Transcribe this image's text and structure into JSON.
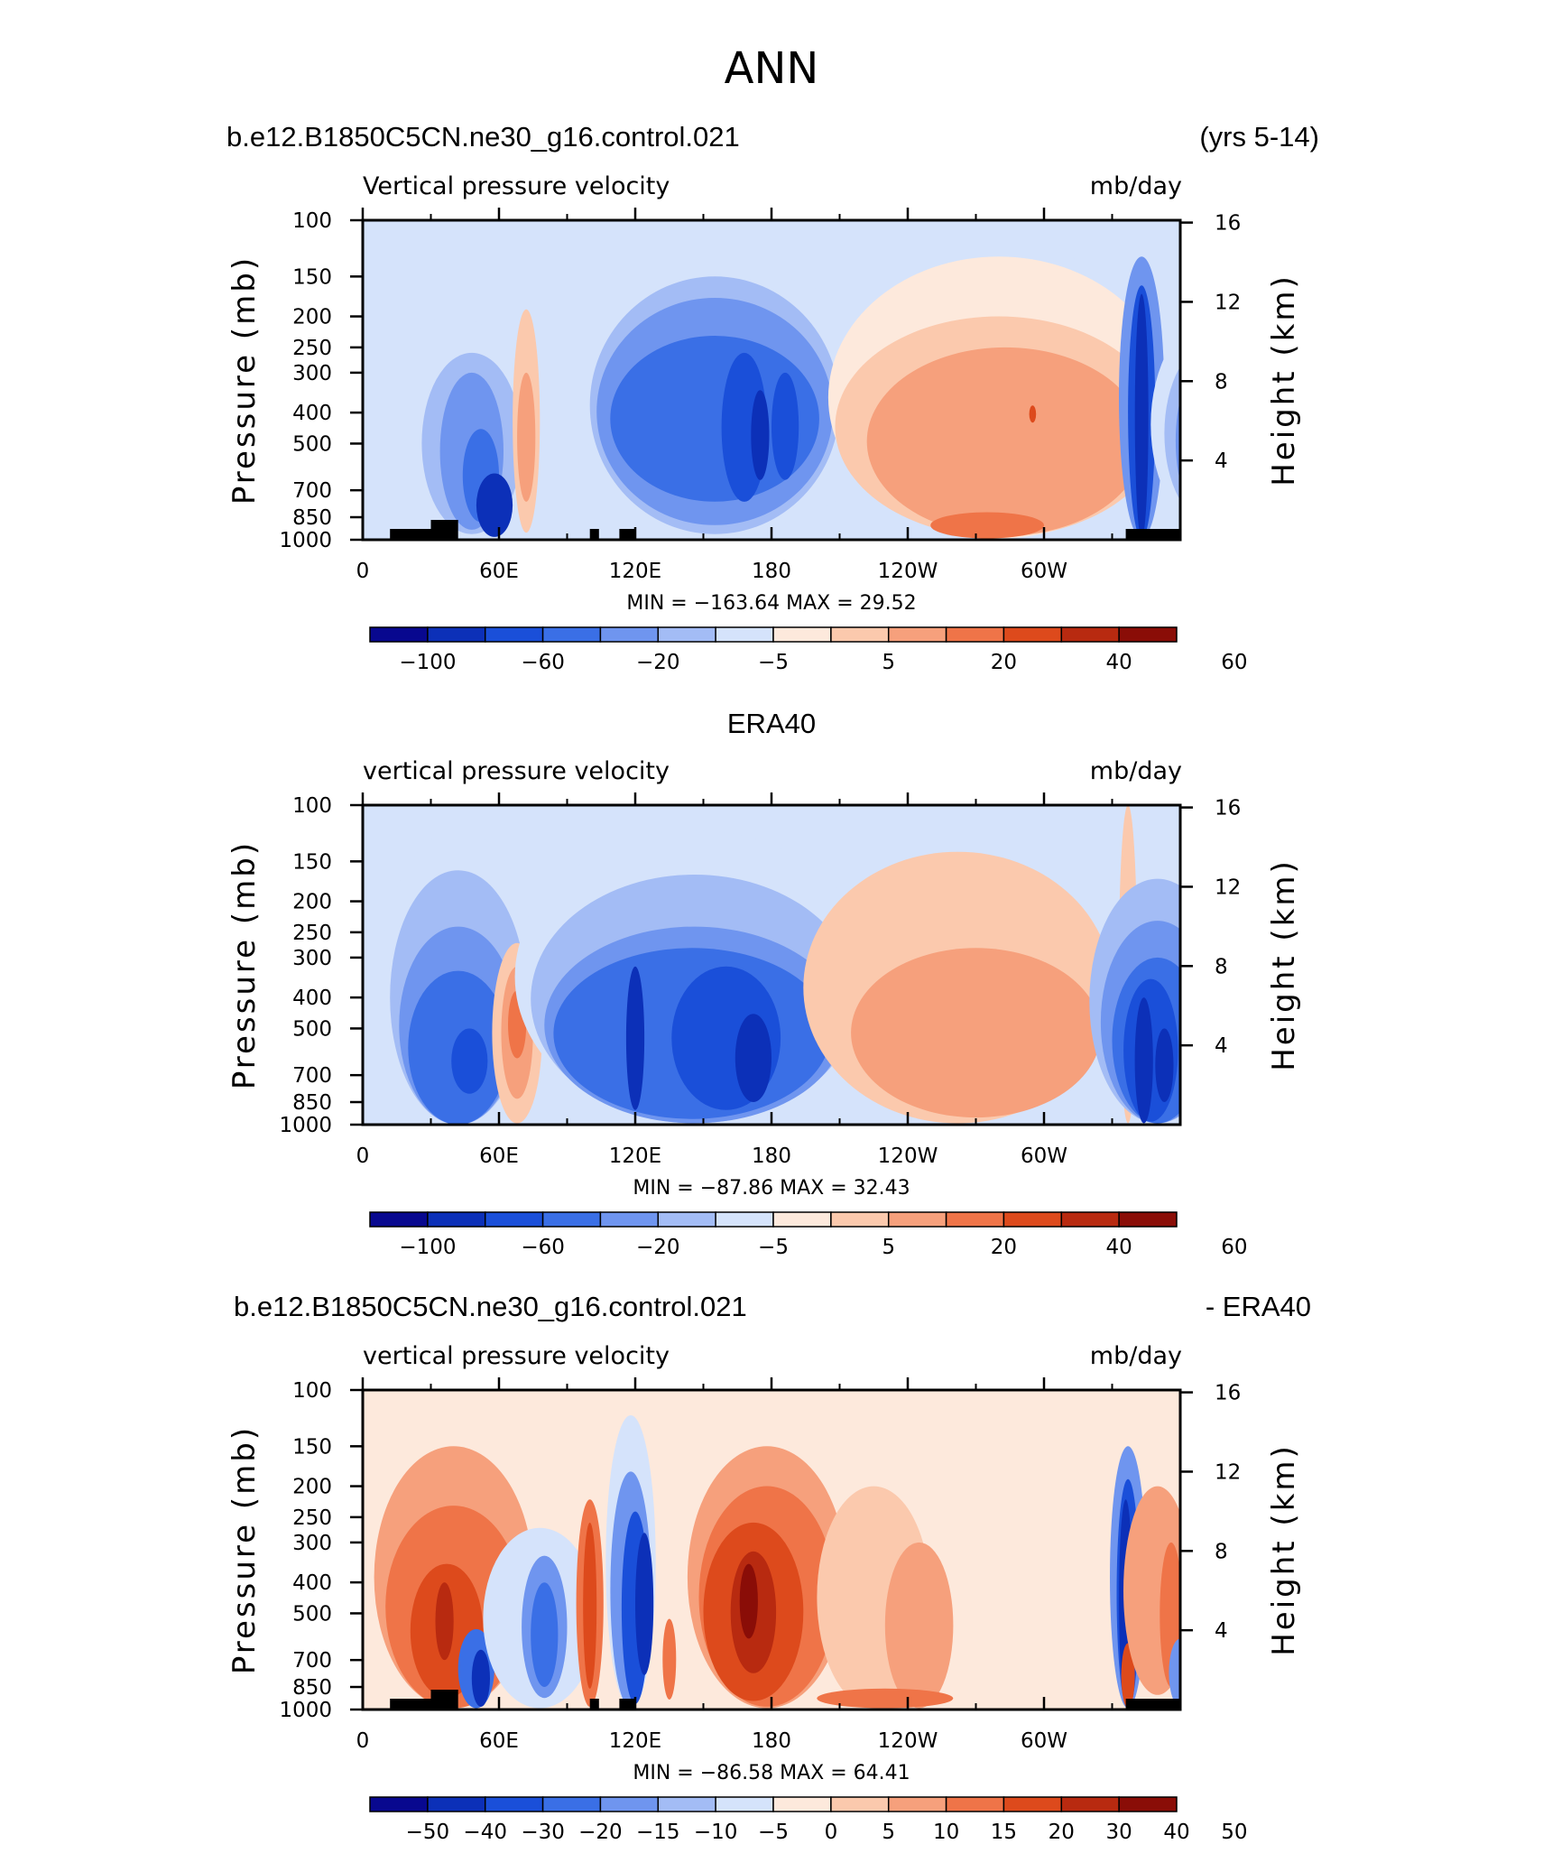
{
  "figure": {
    "title": "ANN"
  },
  "panels": [
    {
      "left_header": "b.e12.B1850C5CN.ne30_g16.control.021",
      "right_header": "(yrs 5-14)",
      "variable": "Vertical pressure velocity",
      "units": "mb/day",
      "min_max_text": "MIN = −163.64   MAX =   29.52"
    },
    {
      "center_header": "ERA40",
      "variable": "vertical pressure velocity",
      "units": "mb/day",
      "min_max_text": "MIN = −87.86   MAX =   32.43"
    },
    {
      "left_header": "b.e12.B1850C5CN.ne30_g16.control.021",
      "right_header": "- ERA40",
      "variable": "vertical pressure velocity",
      "units": "mb/day",
      "min_max_text": "MIN = −86.58   MAX =   64.41"
    }
  ],
  "chart_data": [
    {
      "type": "heatmap",
      "title": "b.e12.B1850C5CN.ne30_g16.control.021 (yrs 5-14)",
      "xlabel": "",
      "ylabel": "Pressure (mb)",
      "y2label": "Height (km)",
      "x_ticks": [
        "0",
        "60E",
        "120E",
        "180",
        "120W",
        "60W"
      ],
      "y_ticks": [
        "100",
        "150",
        "200",
        "250",
        "300",
        "400",
        "500",
        "700",
        "850",
        "1000"
      ],
      "y2_ticks": [
        "16",
        "12",
        "8",
        "4"
      ],
      "colorbar_labels": [
        "−100",
        "−60",
        "−20",
        "−5",
        "5",
        "20",
        "40",
        "60"
      ],
      "min": -163.64,
      "max": 29.52
    },
    {
      "type": "heatmap",
      "title": "ERA40",
      "xlabel": "",
      "ylabel": "Pressure (mb)",
      "y2label": "Height (km)",
      "x_ticks": [
        "0",
        "60E",
        "120E",
        "180",
        "120W",
        "60W"
      ],
      "y_ticks": [
        "100",
        "150",
        "200",
        "250",
        "300",
        "400",
        "500",
        "700",
        "850",
        "1000"
      ],
      "y2_ticks": [
        "16",
        "12",
        "8",
        "4"
      ],
      "colorbar_labels": [
        "−100",
        "−60",
        "−20",
        "−5",
        "5",
        "20",
        "40",
        "60"
      ],
      "min": -87.86,
      "max": 32.43
    },
    {
      "type": "heatmap",
      "title": "b.e12.B1850C5CN.ne30_g16.control.021 - ERA40",
      "xlabel": "",
      "ylabel": "Pressure (mb)",
      "y2label": "Height (km)",
      "x_ticks": [
        "0",
        "60E",
        "120E",
        "180",
        "120W",
        "60W"
      ],
      "y_ticks": [
        "100",
        "150",
        "200",
        "250",
        "300",
        "400",
        "500",
        "700",
        "850",
        "1000"
      ],
      "y2_ticks": [
        "16",
        "12",
        "8",
        "4"
      ],
      "colorbar_labels": [
        "−50",
        "−40",
        "−30",
        "−20",
        "−15",
        "−10",
        "−5",
        "0",
        "5",
        "10",
        "15",
        "20",
        "30",
        "40",
        "50"
      ],
      "min": -86.58,
      "max": 64.41
    }
  ],
  "colors": {
    "palette": [
      "#08088f",
      "#0c30b8",
      "#1a4fd9",
      "#3a6fe6",
      "#6f95ef",
      "#a3bcf5",
      "#d5e3fb",
      "#fde9dc",
      "#fbc9ad",
      "#f6a07c",
      "#ef7448",
      "#dd4a1c",
      "#b82a10",
      "#8a0d07"
    ]
  }
}
